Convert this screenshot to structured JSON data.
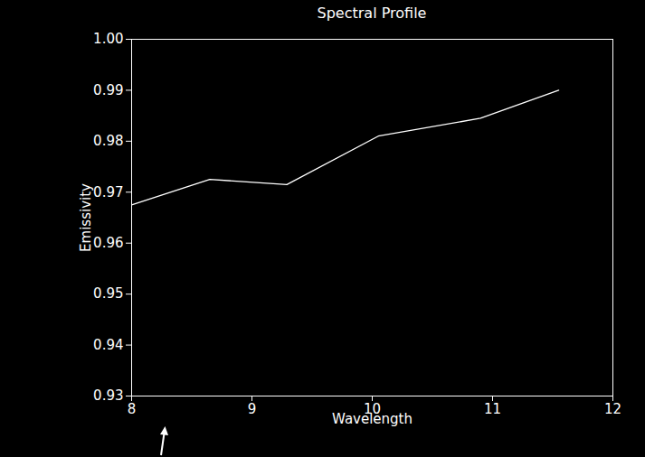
{
  "chart_data": {
    "type": "line",
    "title": "Spectral Profile",
    "x_label": "Wavelength",
    "y_label": "Emissivity",
    "x": [
      8,
      8.65,
      9.29,
      10.05,
      10.9,
      11.55
    ],
    "values": [
      0.9675,
      0.9725,
      0.9715,
      0.981,
      0.9845,
      0.99
    ],
    "color": "#ffffff",
    "xlim": [
      8,
      12
    ],
    "xticks": [
      8,
      9,
      10,
      11,
      12
    ],
    "ylim": [
      0.93,
      1
    ],
    "yticks": [
      0.93,
      0.94,
      0.95,
      0.96,
      0.97,
      0.98,
      0.99,
      {
        "value": 1,
        "label": "1.00"
      }
    ],
    "grid": false
  }
}
